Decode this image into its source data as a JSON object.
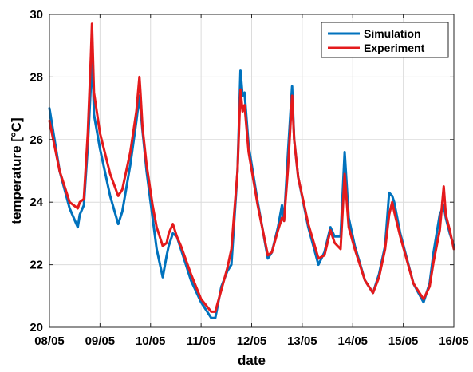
{
  "chart_data": {
    "type": "line",
    "xlabel": "date",
    "ylabel": "temperature [°C]",
    "x_ticks": [
      {
        "x": "2024-05-08",
        "label": "08/05"
      },
      {
        "x": "2024-05-09",
        "label": "09/05"
      },
      {
        "x": "2024-05-10",
        "label": "10/05"
      },
      {
        "x": "2024-05-11",
        "label": "11/05"
      },
      {
        "x": "2024-05-12",
        "label": "12/05"
      },
      {
        "x": "2024-05-13",
        "label": "13/05"
      },
      {
        "x": "2024-05-14",
        "label": "14/05"
      },
      {
        "x": "2024-05-15",
        "label": "15/05"
      },
      {
        "x": "2024-05-16",
        "label": "16/05"
      }
    ],
    "xlim": [
      "2024-05-08T00:00",
      "2024-05-16T00:00"
    ],
    "ylim": [
      20,
      30
    ],
    "y_ticks": [
      20,
      22,
      24,
      26,
      28,
      30
    ],
    "grid": true,
    "legend_position": "top-right",
    "series": [
      {
        "name": "Simulation",
        "color": "#0072BD",
        "points": [
          [
            "2024-05-08T00:00",
            27.0
          ],
          [
            "2024-05-08T04:48",
            25.0
          ],
          [
            "2024-05-08T09:36",
            23.8
          ],
          [
            "2024-05-08T13:26",
            23.2
          ],
          [
            "2024-05-08T14:24",
            23.6
          ],
          [
            "2024-05-08T16:19",
            23.9
          ],
          [
            "2024-05-08T18:14",
            25.8
          ],
          [
            "2024-05-08T19:41",
            27.8
          ],
          [
            "2024-05-08T20:10",
            29.0
          ],
          [
            "2024-05-08T21:07",
            26.8
          ],
          [
            "2024-05-09T00:00",
            25.7
          ],
          [
            "2024-05-09T04:48",
            24.2
          ],
          [
            "2024-05-09T08:38",
            23.3
          ],
          [
            "2024-05-09T10:34",
            23.7
          ],
          [
            "2024-05-09T14:24",
            25.2
          ],
          [
            "2024-05-09T17:17",
            26.6
          ],
          [
            "2024-05-09T18:43",
            27.4
          ],
          [
            "2024-05-09T19:12",
            27.0
          ],
          [
            "2024-05-09T20:10",
            26.3
          ],
          [
            "2024-05-09T22:05",
            25.0
          ],
          [
            "2024-05-10T00:58",
            23.5
          ],
          [
            "2024-05-10T02:53",
            22.5
          ],
          [
            "2024-05-10T05:46",
            21.6
          ],
          [
            "2024-05-10T07:41",
            22.3
          ],
          [
            "2024-05-10T08:38",
            22.6
          ],
          [
            "2024-05-10T10:34",
            23.0
          ],
          [
            "2024-05-10T12:29",
            22.9
          ],
          [
            "2024-05-10T14:24",
            22.5
          ],
          [
            "2024-05-10T19:12",
            21.5
          ],
          [
            "2024-05-11T00:00",
            20.8
          ],
          [
            "2024-05-11T04:48",
            20.3
          ],
          [
            "2024-05-11T06:43",
            20.3
          ],
          [
            "2024-05-11T09:36",
            21.3
          ],
          [
            "2024-05-11T12:29",
            21.8
          ],
          [
            "2024-05-11T14:24",
            22.0
          ],
          [
            "2024-05-11T17:17",
            25.0
          ],
          [
            "2024-05-11T18:43",
            28.2
          ],
          [
            "2024-05-11T19:41",
            27.4
          ],
          [
            "2024-05-11T20:38",
            27.5
          ],
          [
            "2024-05-11T22:34",
            25.8
          ],
          [
            "2024-05-12T02:53",
            24.0
          ],
          [
            "2024-05-12T07:41",
            22.2
          ],
          [
            "2024-05-12T09:36",
            22.4
          ],
          [
            "2024-05-12T12:29",
            23.2
          ],
          [
            "2024-05-12T14:24",
            23.9
          ],
          [
            "2024-05-12T15:22",
            23.4
          ],
          [
            "2024-05-12T17:17",
            25.6
          ],
          [
            "2024-05-12T19:12",
            27.7
          ],
          [
            "2024-05-12T20:10",
            26.0
          ],
          [
            "2024-05-12T22:05",
            24.8
          ],
          [
            "2024-05-13T02:53",
            23.2
          ],
          [
            "2024-05-13T07:41",
            22.0
          ],
          [
            "2024-05-13T10:34",
            22.4
          ],
          [
            "2024-05-13T13:26",
            23.2
          ],
          [
            "2024-05-13T15:22",
            22.9
          ],
          [
            "2024-05-13T18:14",
            22.9
          ],
          [
            "2024-05-13T20:10",
            25.6
          ],
          [
            "2024-05-13T22:05",
            23.5
          ],
          [
            "2024-05-14T00:58",
            22.6
          ],
          [
            "2024-05-14T05:46",
            21.5
          ],
          [
            "2024-05-14T09:36",
            21.1
          ],
          [
            "2024-05-14T12:29",
            21.7
          ],
          [
            "2024-05-14T15:22",
            22.6
          ],
          [
            "2024-05-14T17:17",
            24.3
          ],
          [
            "2024-05-14T18:43",
            24.2
          ],
          [
            "2024-05-14T19:41",
            24.0
          ],
          [
            "2024-05-14T22:34",
            23.0
          ],
          [
            "2024-05-15T04:48",
            21.4
          ],
          [
            "2024-05-15T09:36",
            20.8
          ],
          [
            "2024-05-15T12:29",
            21.4
          ],
          [
            "2024-05-15T14:24",
            22.4
          ],
          [
            "2024-05-15T17:17",
            23.6
          ],
          [
            "2024-05-15T19:12",
            23.9
          ],
          [
            "2024-05-15T20:10",
            23.5
          ],
          [
            "2024-05-15T22:05",
            23.0
          ],
          [
            "2024-05-16T00:00",
            22.6
          ]
        ]
      },
      {
        "name": "Experiment",
        "color": "#E41A1C",
        "points": [
          [
            "2024-05-08T00:00",
            26.6
          ],
          [
            "2024-05-08T04:48",
            25.0
          ],
          [
            "2024-05-08T09:36",
            24.0
          ],
          [
            "2024-05-08T13:26",
            23.8
          ],
          [
            "2024-05-08T14:24",
            24.0
          ],
          [
            "2024-05-08T16:19",
            24.1
          ],
          [
            "2024-05-08T18:14",
            26.2
          ],
          [
            "2024-05-08T19:41",
            28.7
          ],
          [
            "2024-05-08T20:10",
            29.7
          ],
          [
            "2024-05-08T21:07",
            27.5
          ],
          [
            "2024-05-09T00:00",
            26.2
          ],
          [
            "2024-05-09T04:48",
            24.9
          ],
          [
            "2024-05-09T08:38",
            24.2
          ],
          [
            "2024-05-09T10:34",
            24.4
          ],
          [
            "2024-05-09T14:24",
            25.6
          ],
          [
            "2024-05-09T17:17",
            26.9
          ],
          [
            "2024-05-09T18:43",
            28.0
          ],
          [
            "2024-05-09T19:12",
            27.5
          ],
          [
            "2024-05-09T20:10",
            26.4
          ],
          [
            "2024-05-09T22:05",
            25.2
          ],
          [
            "2024-05-10T00:58",
            23.9
          ],
          [
            "2024-05-10T02:53",
            23.2
          ],
          [
            "2024-05-10T05:46",
            22.6
          ],
          [
            "2024-05-10T07:41",
            22.7
          ],
          [
            "2024-05-10T08:38",
            23.0
          ],
          [
            "2024-05-10T10:34",
            23.3
          ],
          [
            "2024-05-10T12:29",
            22.9
          ],
          [
            "2024-05-10T14:24",
            22.6
          ],
          [
            "2024-05-10T19:12",
            21.7
          ],
          [
            "2024-05-11T00:00",
            20.9
          ],
          [
            "2024-05-11T04:48",
            20.5
          ],
          [
            "2024-05-11T06:43",
            20.5
          ],
          [
            "2024-05-11T09:36",
            21.2
          ],
          [
            "2024-05-11T12:29",
            21.9
          ],
          [
            "2024-05-11T14:24",
            22.5
          ],
          [
            "2024-05-11T17:17",
            25.0
          ],
          [
            "2024-05-11T18:43",
            27.6
          ],
          [
            "2024-05-11T19:41",
            26.9
          ],
          [
            "2024-05-11T20:38",
            27.1
          ],
          [
            "2024-05-11T22:34",
            25.6
          ],
          [
            "2024-05-12T02:53",
            23.9
          ],
          [
            "2024-05-12T07:41",
            22.3
          ],
          [
            "2024-05-12T09:36",
            22.4
          ],
          [
            "2024-05-12T12:29",
            23.1
          ],
          [
            "2024-05-12T14:24",
            23.5
          ],
          [
            "2024-05-12T15:22",
            23.4
          ],
          [
            "2024-05-12T17:17",
            25.1
          ],
          [
            "2024-05-12T19:12",
            27.4
          ],
          [
            "2024-05-12T20:10",
            26.0
          ],
          [
            "2024-05-12T22:05",
            24.8
          ],
          [
            "2024-05-13T02:53",
            23.3
          ],
          [
            "2024-05-13T07:41",
            22.2
          ],
          [
            "2024-05-13T10:34",
            22.3
          ],
          [
            "2024-05-13T13:26",
            23.1
          ],
          [
            "2024-05-13T15:22",
            22.7
          ],
          [
            "2024-05-13T18:14",
            22.5
          ],
          [
            "2024-05-13T20:10",
            24.9
          ],
          [
            "2024-05-13T22:05",
            23.2
          ],
          [
            "2024-05-14T00:58",
            22.5
          ],
          [
            "2024-05-14T05:46",
            21.5
          ],
          [
            "2024-05-14T09:36",
            21.1
          ],
          [
            "2024-05-14T12:29",
            21.6
          ],
          [
            "2024-05-14T15:22",
            22.5
          ],
          [
            "2024-05-14T17:17",
            23.6
          ],
          [
            "2024-05-14T18:43",
            24.0
          ],
          [
            "2024-05-14T19:41",
            23.7
          ],
          [
            "2024-05-14T22:34",
            22.9
          ],
          [
            "2024-05-15T04:48",
            21.4
          ],
          [
            "2024-05-15T09:36",
            20.9
          ],
          [
            "2024-05-15T12:29",
            21.3
          ],
          [
            "2024-05-15T14:24",
            22.1
          ],
          [
            "2024-05-15T17:17",
            23.1
          ],
          [
            "2024-05-15T19:12",
            24.5
          ],
          [
            "2024-05-15T20:10",
            23.6
          ],
          [
            "2024-05-15T22:05",
            23.1
          ],
          [
            "2024-05-16T00:00",
            22.5
          ]
        ]
      }
    ]
  }
}
